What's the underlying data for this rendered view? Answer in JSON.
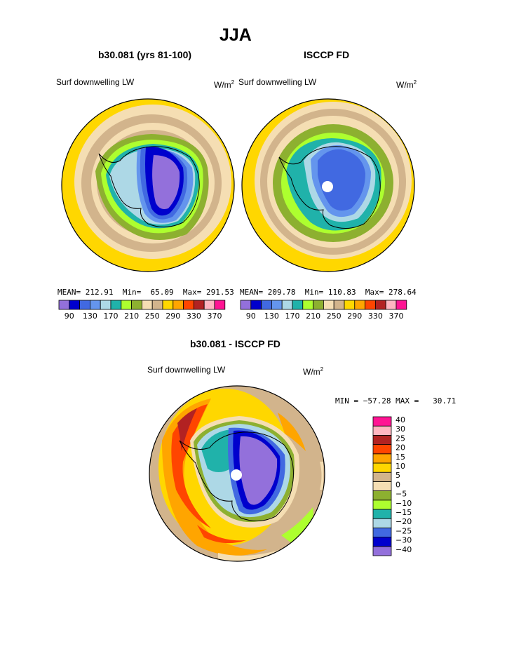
{
  "page": {
    "title": "JJA"
  },
  "chart_data": [
    {
      "type": "heatmap",
      "title": "b30.081 (yrs 81-100)",
      "left_label": "Surf downwelling LW",
      "units": "W/m",
      "units_exp": "2",
      "stats": {
        "mean_label": "MEAN=",
        "mean": "212.91",
        "min_label": "Min=",
        "min": "65.09",
        "max_label": "Max=",
        "max": "291.53"
      },
      "colorbar": {
        "orientation": "horizontal",
        "colors": [
          "#9370DB",
          "#0000CD",
          "#4169E1",
          "#6495ED",
          "#ADD8E6",
          "#20B2AA",
          "#ADFF2F",
          "#8DB030",
          "#F5DEB3",
          "#D2B48C",
          "#FFD700",
          "#FFA500",
          "#FF4500",
          "#B22222",
          "#FFB6C1",
          "#FF1493"
        ],
        "tick_labels": [
          "90",
          "130",
          "170",
          "210",
          "250",
          "290",
          "330",
          "370"
        ]
      }
    },
    {
      "type": "heatmap",
      "title": "ISCCP FD",
      "left_label": "Surf downwelling LW",
      "units": "W/m",
      "units_exp": "2",
      "stats": {
        "mean_label": "MEAN=",
        "mean": "209.78",
        "min_label": "Min=",
        "min": "110.83",
        "max_label": "Max=",
        "max": "278.64"
      },
      "colorbar": {
        "orientation": "horizontal",
        "colors": [
          "#9370DB",
          "#0000CD",
          "#4169E1",
          "#6495ED",
          "#ADD8E6",
          "#20B2AA",
          "#ADFF2F",
          "#8DB030",
          "#F5DEB3",
          "#D2B48C",
          "#FFD700",
          "#FFA500",
          "#FF4500",
          "#B22222",
          "#FFB6C1",
          "#FF1493"
        ],
        "tick_labels": [
          "90",
          "130",
          "170",
          "210",
          "250",
          "290",
          "330",
          "370"
        ]
      }
    },
    {
      "type": "heatmap",
      "title": "b30.081 - ISCCP FD",
      "left_label": "Surf downwelling LW",
      "units": "W/m",
      "units_exp": "2",
      "stats_line": "MIN = −57.28 MAX =   30.71",
      "colorbar": {
        "orientation": "vertical",
        "colors": [
          "#9370DB",
          "#0000CD",
          "#4169E1",
          "#ADD8E6",
          "#20B2AA",
          "#ADFF2F",
          "#8DB030",
          "#F5DEB3",
          "#D2B48C",
          "#FFD700",
          "#FFA500",
          "#FF4500",
          "#B22222",
          "#FFB6C1",
          "#FF1493"
        ],
        "tick_labels": [
          "−40",
          "−30",
          "−25",
          "−20",
          "−15",
          "−10",
          "−5",
          "0",
          "5",
          "10",
          "15",
          "20",
          "25",
          "30",
          "40"
        ]
      }
    }
  ]
}
